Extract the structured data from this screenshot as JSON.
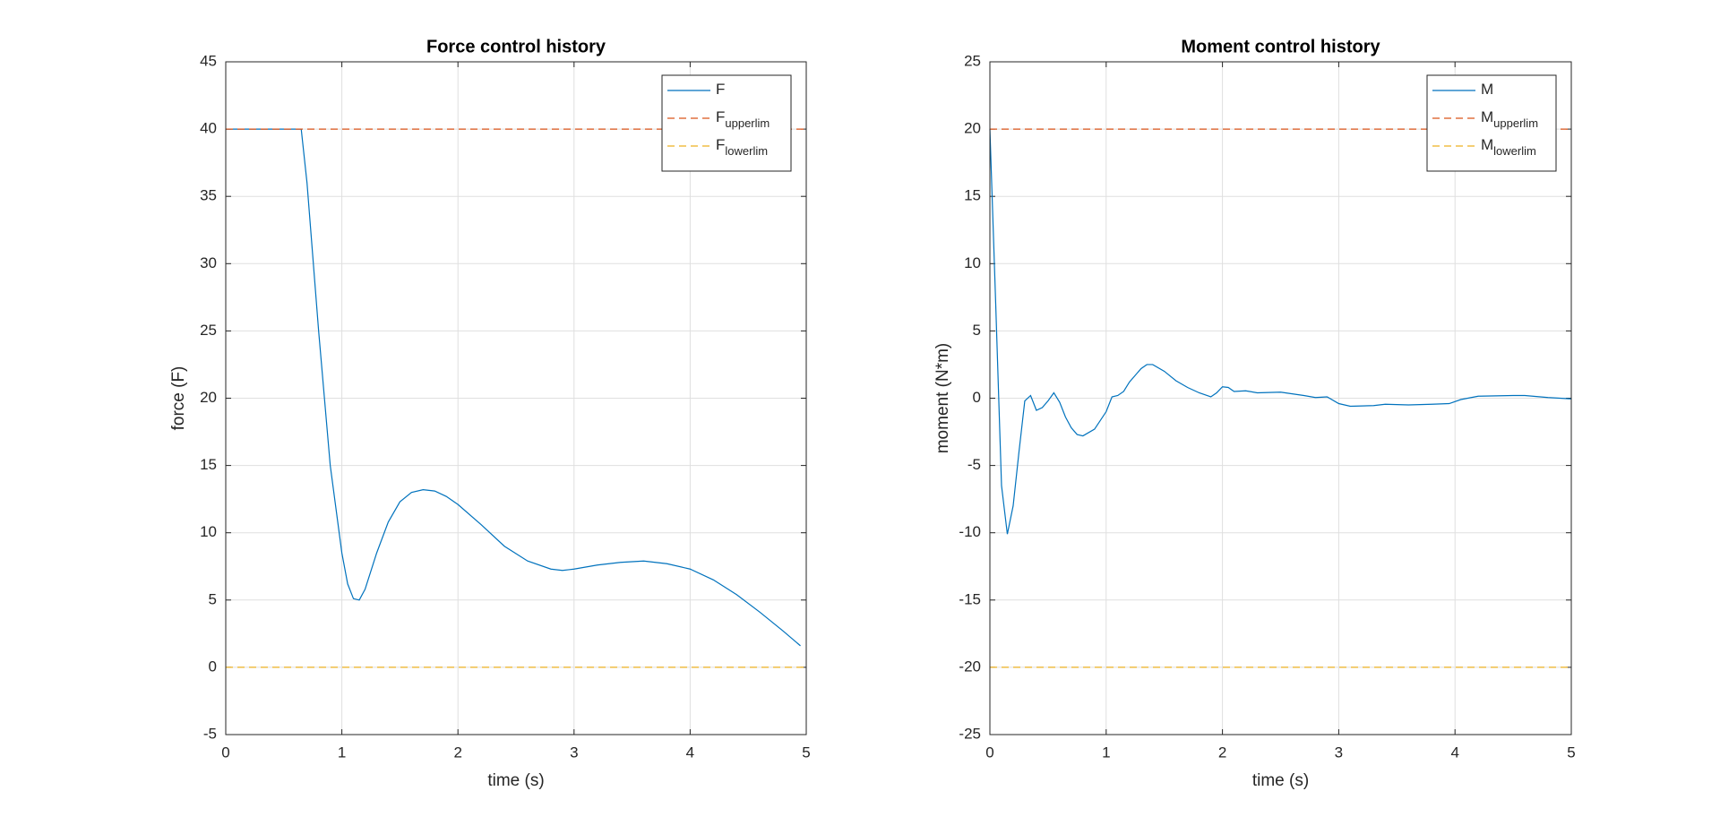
{
  "chart_data": [
    {
      "type": "line",
      "title": "Force control history",
      "xlabel": "time (s)",
      "ylabel": "force (F)",
      "xlim": [
        0,
        5
      ],
      "xticks": [
        0,
        1,
        2,
        3,
        4,
        5
      ],
      "ylim": [
        -5,
        45
      ],
      "yticks": [
        -5,
        0,
        5,
        10,
        15,
        20,
        25,
        30,
        35,
        40,
        45
      ],
      "grid": true,
      "legend": "northeast",
      "series": [
        {
          "name": "F",
          "color": "#0072bd",
          "dash": false,
          "x": [
            0,
            0.65,
            0.7,
            0.8,
            0.9,
            1.0,
            1.05,
            1.1,
            1.15,
            1.2,
            1.3,
            1.4,
            1.5,
            1.6,
            1.7,
            1.8,
            1.9,
            2.0,
            2.2,
            2.4,
            2.6,
            2.8,
            2.9,
            3.0,
            3.2,
            3.4,
            3.6,
            3.8,
            4.0,
            4.2,
            4.4,
            4.6,
            4.8,
            4.95
          ],
          "values": [
            40,
            40,
            36,
            25,
            15,
            8.5,
            6.2,
            5.1,
            5.0,
            5.8,
            8.5,
            10.8,
            12.3,
            13.0,
            13.2,
            13.1,
            12.7,
            12.1,
            10.6,
            9.0,
            7.9,
            7.3,
            7.2,
            7.3,
            7.6,
            7.8,
            7.9,
            7.7,
            7.3,
            6.5,
            5.4,
            4.1,
            2.7,
            1.6
          ]
        },
        {
          "name": "F",
          "subscript": "upperlim",
          "color": "#d95319",
          "dash": true,
          "x": [
            0,
            5
          ],
          "values": [
            40,
            40
          ]
        },
        {
          "name": "F",
          "subscript": "lowerlim",
          "color": "#edb120",
          "dash": true,
          "x": [
            0,
            5
          ],
          "values": [
            0,
            0
          ]
        }
      ]
    },
    {
      "type": "line",
      "title": "Moment control history",
      "xlabel": "time (s)",
      "ylabel": "moment (N*m)",
      "xlim": [
        0,
        5
      ],
      "xticks": [
        0,
        1,
        2,
        3,
        4,
        5
      ],
      "ylim": [
        -25,
        25
      ],
      "yticks": [
        -25,
        -20,
        -15,
        -10,
        -5,
        0,
        5,
        10,
        15,
        20,
        25
      ],
      "grid": true,
      "legend": "northeast",
      "series": [
        {
          "name": "M",
          "color": "#0072bd",
          "dash": false,
          "x": [
            0,
            0.05,
            0.1,
            0.15,
            0.2,
            0.25,
            0.3,
            0.35,
            0.4,
            0.45,
            0.5,
            0.55,
            0.6,
            0.65,
            0.7,
            0.75,
            0.8,
            0.9,
            1.0,
            1.05,
            1.1,
            1.15,
            1.2,
            1.3,
            1.35,
            1.4,
            1.5,
            1.6,
            1.7,
            1.8,
            1.9,
            1.95,
            2.0,
            2.05,
            2.1,
            2.2,
            2.3,
            2.5,
            2.7,
            2.8,
            2.9,
            3.0,
            3.1,
            3.3,
            3.4,
            3.6,
            3.8,
            3.95,
            4.05,
            4.2,
            4.5,
            4.6,
            4.8,
            5.0
          ],
          "values": [
            20,
            7,
            -6.5,
            -10.1,
            -8,
            -4,
            -0.2,
            0.2,
            -0.9,
            -0.7,
            -0.2,
            0.4,
            -0.3,
            -1.4,
            -2.2,
            -2.7,
            -2.8,
            -2.3,
            -1.0,
            0.1,
            0.2,
            0.5,
            1.2,
            2.2,
            2.5,
            2.5,
            2.0,
            1.3,
            0.8,
            0.4,
            0.1,
            0.4,
            0.85,
            0.8,
            0.5,
            0.55,
            0.4,
            0.45,
            0.2,
            0.05,
            0.1,
            -0.4,
            -0.6,
            -0.55,
            -0.45,
            -0.5,
            -0.45,
            -0.4,
            -0.1,
            0.15,
            0.2,
            0.2,
            0.05,
            -0.05
          ]
        },
        {
          "name": "M",
          "subscript": "upperlim",
          "color": "#d95319",
          "dash": true,
          "x": [
            0,
            5
          ],
          "values": [
            20,
            20
          ]
        },
        {
          "name": "M",
          "subscript": "lowerlim",
          "color": "#edb120",
          "dash": true,
          "x": [
            0,
            5
          ],
          "values": [
            -20,
            -20
          ]
        }
      ]
    }
  ]
}
